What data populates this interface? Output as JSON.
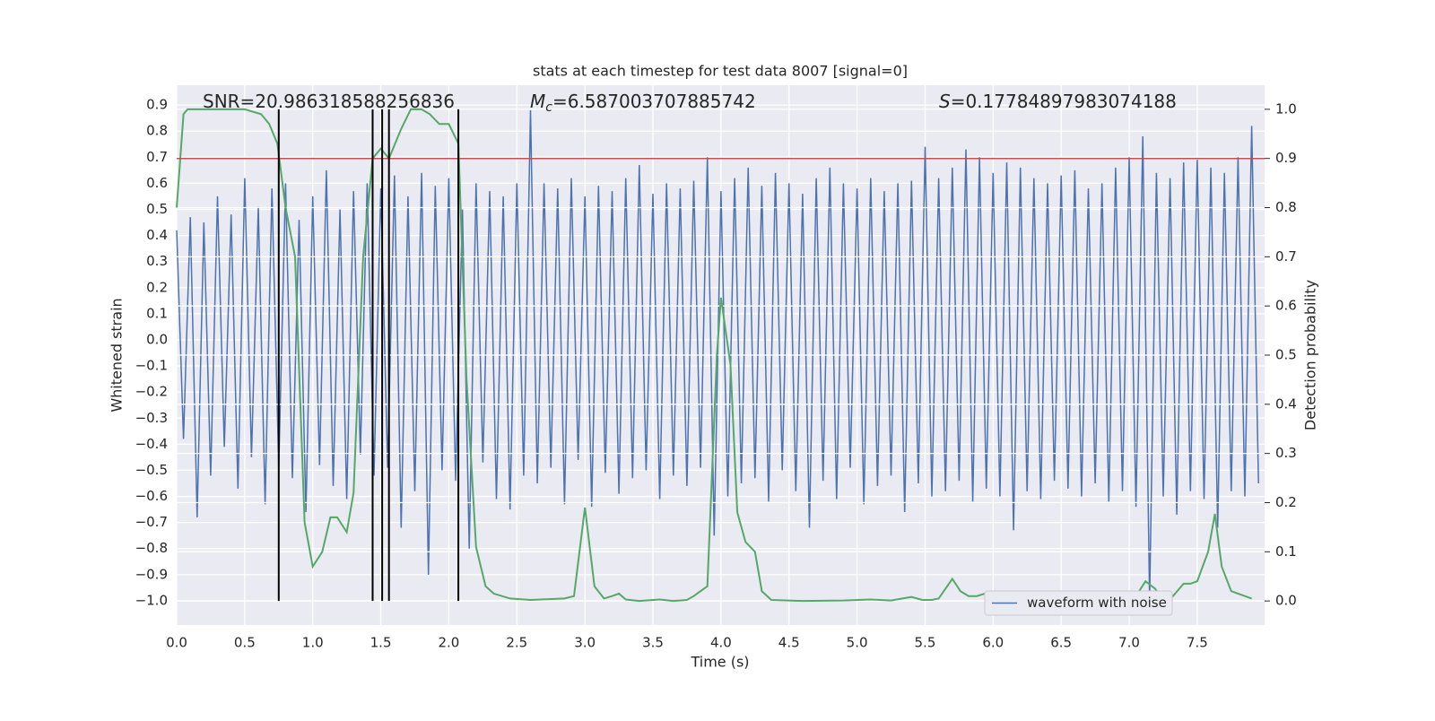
{
  "chart_data": {
    "type": "line",
    "title": "stats at each timestep for test data 8007 [signal=0]",
    "x_label": "Time (s)",
    "y_label": "Whitened strain",
    "y2_label": "Detection probability",
    "annotations": [
      {
        "text": "SNR=20.986318588256836"
      },
      {
        "symbol": "M",
        "subscript": "c",
        "text": "=6.587003707885742"
      },
      {
        "symbol": "S",
        "text": "=0.17784897983074188"
      }
    ],
    "xlim": [
      0,
      7.995
    ],
    "ylim": [
      -1.093,
      0.976
    ],
    "y2lim": [
      -0.049,
      1.049
    ],
    "xticks": [
      {
        "value": 0,
        "label": "0.0"
      },
      0.5,
      {
        "value": 1,
        "label": "1.0"
      },
      1.5,
      {
        "value": 2,
        "label": "2.0"
      },
      2.5,
      {
        "value": 3,
        "label": "3.0"
      },
      3.5,
      {
        "value": 4,
        "label": "4.0"
      },
      4.5,
      {
        "value": 5,
        "label": "5.0"
      },
      5.5,
      {
        "value": 6,
        "label": "6.0"
      },
      6.5,
      {
        "value": 7,
        "label": "7.0"
      },
      7.5
    ],
    "yticks": [
      {
        "value": -1,
        "label": "−1.0"
      },
      {
        "value": -0.9,
        "label": "−0.9"
      },
      {
        "value": -0.8,
        "label": "−0.8"
      },
      {
        "value": -0.7,
        "label": "−0.7"
      },
      {
        "value": -0.6,
        "label": "−0.6"
      },
      {
        "value": -0.5,
        "label": "−0.5"
      },
      {
        "value": -0.4,
        "label": "−0.4"
      },
      {
        "value": -0.3,
        "label": "−0.3"
      },
      {
        "value": -0.2,
        "label": "−0.2"
      },
      {
        "value": -0.1,
        "label": "−0.1"
      },
      {
        "value": 0,
        "label": "0.0"
      },
      0.1,
      0.2,
      0.3,
      0.4,
      0.5,
      0.6,
      0.7,
      0.8,
      0.9
    ],
    "y2ticks": [
      {
        "value": 0,
        "label": "0.0"
      },
      0.1,
      0.2,
      0.3,
      0.4,
      0.5,
      0.6,
      0.7,
      0.8,
      0.9,
      {
        "value": 1,
        "label": "1.0"
      }
    ],
    "grid": true,
    "legend": "lower right",
    "threshold": {
      "value": 0.9,
      "axis": "y2",
      "color": "#c44e52"
    },
    "vlines": {
      "x": [
        0.75,
        1.44,
        1.51,
        1.56,
        2.07
      ],
      "ymin": 0,
      "ymax": 1,
      "axis": "y2",
      "color": "#000000"
    },
    "series": [
      {
        "name": "waveform with noise",
        "color": "#4c72b0",
        "x": [
          0,
          0.05,
          0.1,
          0.15,
          0.2,
          0.25,
          0.3,
          0.35,
          0.4,
          0.45,
          0.5,
          0.55,
          0.6,
          0.65,
          0.7,
          0.75,
          0.8,
          0.85,
          0.9,
          0.95,
          1,
          1.05,
          1.1,
          1.15,
          1.2,
          1.25,
          1.3,
          1.35,
          1.4,
          1.45,
          1.5,
          1.55,
          1.6,
          1.65,
          1.7,
          1.75,
          1.8,
          1.85,
          1.9,
          1.95,
          2,
          2.05,
          2.1,
          2.15,
          2.2,
          2.25,
          2.3,
          2.35,
          2.4,
          2.45,
          2.5,
          2.55,
          2.6,
          2.65,
          2.7,
          2.75,
          2.8,
          2.85,
          2.9,
          2.95,
          3,
          3.05,
          3.1,
          3.15,
          3.2,
          3.25,
          3.3,
          3.35,
          3.4,
          3.45,
          3.5,
          3.55,
          3.6,
          3.65,
          3.7,
          3.75,
          3.8,
          3.85,
          3.9,
          3.95,
          4,
          4.05,
          4.1,
          4.15,
          4.2,
          4.25,
          4.3,
          4.35,
          4.4,
          4.45,
          4.5,
          4.55,
          4.6,
          4.65,
          4.7,
          4.75,
          4.8,
          4.85,
          4.9,
          4.95,
          5,
          5.05,
          5.1,
          5.15,
          5.2,
          5.25,
          5.3,
          5.35,
          5.4,
          5.45,
          5.5,
          5.55,
          5.6,
          5.65,
          5.7,
          5.75,
          5.8,
          5.85,
          5.9,
          5.95,
          6,
          6.05,
          6.1,
          6.15,
          6.2,
          6.25,
          6.3,
          6.35,
          6.4,
          6.45,
          6.5,
          6.55,
          6.6,
          6.65,
          6.7,
          6.75,
          6.8,
          6.85,
          6.9,
          6.95,
          7,
          7.05,
          7.1,
          7.15,
          7.2,
          7.25,
          7.3,
          7.35,
          7.4,
          7.45,
          7.5,
          7.55,
          7.6,
          7.65,
          7.7,
          7.75,
          7.8,
          7.85,
          7.9,
          7.95
        ],
        "values": [
          0.42,
          -0.38,
          0.47,
          -0.68,
          0.45,
          -0.52,
          0.55,
          -0.41,
          0.48,
          -0.57,
          0.62,
          -0.45,
          0.51,
          -0.63,
          0.58,
          -0.49,
          0.6,
          -0.53,
          0.46,
          -0.66,
          0.55,
          -0.48,
          0.65,
          -0.56,
          0.5,
          -0.61,
          0.57,
          -0.44,
          0.6,
          -0.52,
          0.58,
          -0.49,
          0.63,
          -0.72,
          0.55,
          -0.58,
          0.64,
          -0.9,
          0.59,
          -0.5,
          0.62,
          -0.54,
          0.5,
          -0.8,
          0.6,
          -0.47,
          0.57,
          -0.61,
          0.55,
          -0.65,
          0.6,
          -0.52,
          0.88,
          -0.55,
          0.6,
          -0.49,
          0.58,
          -0.63,
          0.62,
          -0.46,
          0.55,
          -0.64,
          0.59,
          -0.51,
          0.57,
          -0.59,
          0.62,
          -0.53,
          0.67,
          -0.5,
          0.56,
          -0.61,
          0.6,
          -0.52,
          0.58,
          -0.56,
          0.61,
          -0.49,
          0.7,
          -0.75,
          0.57,
          -0.6,
          0.62,
          -0.55,
          0.66,
          -0.53,
          0.59,
          -0.62,
          0.64,
          -0.5,
          0.6,
          -0.58,
          0.56,
          -0.72,
          0.62,
          -0.54,
          0.66,
          -0.61,
          0.6,
          -0.49,
          0.58,
          -0.63,
          0.62,
          -0.56,
          0.57,
          -0.52,
          0.6,
          -0.66,
          0.61,
          -0.55,
          0.74,
          -0.6,
          0.62,
          -0.58,
          0.66,
          -0.54,
          0.73,
          -0.62,
          0.7,
          -0.57,
          0.64,
          -0.6,
          0.68,
          -0.73,
          0.66,
          -0.58,
          0.62,
          -0.61,
          0.6,
          -0.54,
          0.63,
          -0.57,
          0.65,
          -0.6,
          0.58,
          -0.55,
          0.6,
          -0.62,
          0.66,
          -0.58,
          0.7,
          -0.64,
          0.78,
          -1.0,
          0.64,
          -0.6,
          0.62,
          -0.67,
          0.68,
          -0.58,
          0.69,
          -0.61,
          0.66,
          -0.72,
          0.64,
          -0.58,
          0.7,
          -0.6,
          0.82,
          -0.55
        ]
      },
      {
        "axis": "y2",
        "color": "#55a868",
        "x": [
          0,
          0.05,
          0.08,
          0.12,
          0.2,
          0.35,
          0.5,
          0.62,
          0.68,
          0.74,
          0.8,
          0.87,
          0.94,
          1,
          1.07,
          1.13,
          1.18,
          1.25,
          1.3,
          1.37,
          1.44,
          1.5,
          1.56,
          1.65,
          1.72,
          1.8,
          1.86,
          1.93,
          2,
          2.07,
          2.13,
          2.2,
          2.27,
          2.33,
          2.45,
          2.6,
          2.85,
          2.92,
          3,
          3.07,
          3.14,
          3.2,
          3.25,
          3.3,
          3.4,
          3.55,
          3.65,
          3.75,
          3.8,
          3.9,
          3.97,
          4,
          4.07,
          4.12,
          4.18,
          4.25,
          4.3,
          4.37,
          4.6,
          4.9,
          5.1,
          5.25,
          5.4,
          5.48,
          5.55,
          5.6,
          5.7,
          5.76,
          5.82,
          5.88,
          5.95,
          6,
          6.07,
          6.2,
          6.5,
          6.8,
          6.95,
          7.05,
          7.12,
          7.19,
          7.25,
          7.3,
          7.4,
          7.45,
          7.5,
          7.58,
          7.63,
          7.68,
          7.75,
          7.9
        ],
        "values": [
          0.8,
          0.99,
          1.0,
          1.0,
          1.0,
          1.0,
          1.0,
          0.99,
          0.97,
          0.93,
          0.8,
          0.7,
          0.16,
          0.07,
          0.1,
          0.17,
          0.17,
          0.14,
          0.22,
          0.7,
          0.9,
          0.92,
          0.9,
          0.96,
          1.0,
          1.0,
          0.99,
          0.97,
          0.97,
          0.93,
          0.45,
          0.11,
          0.03,
          0.015,
          0.005,
          0.002,
          0.005,
          0.01,
          0.19,
          0.03,
          0.005,
          0.01,
          0.015,
          0.003,
          0.0,
          0.003,
          0.0,
          0.002,
          0.01,
          0.03,
          0.5,
          0.617,
          0.48,
          0.18,
          0.12,
          0.1,
          0.02,
          0.002,
          0.0,
          0.001,
          0.003,
          0.001,
          0.008,
          0.002,
          0.002,
          0.005,
          0.045,
          0.02,
          0.01,
          0.01,
          0.016,
          0.01,
          0.002,
          0.002,
          0.001,
          0.001,
          0.004,
          0.01,
          0.04,
          0.025,
          0.0,
          0.003,
          0.035,
          0.035,
          0.04,
          0.1,
          0.177,
          0.07,
          0.02,
          0.005
        ]
      }
    ]
  }
}
